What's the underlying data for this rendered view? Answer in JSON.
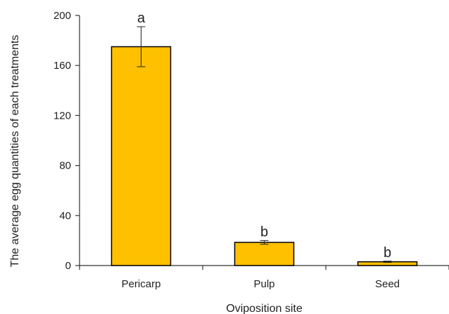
{
  "chart_data": {
    "type": "bar",
    "categories": [
      "Pericarp",
      "Pulp",
      "Seed"
    ],
    "values": [
      175,
      18.5,
      3
    ],
    "error": [
      16,
      1.5,
      0.5
    ],
    "significance": [
      "a",
      "b",
      "b"
    ],
    "xlabel": "Oviposition site",
    "ylabel": "The average egg quantities of each treatments",
    "ylim": [
      0,
      200
    ],
    "yticks": [
      0,
      40,
      80,
      120,
      160,
      200
    ],
    "grid": false,
    "legend": "none",
    "bar_color": "#FFC000"
  }
}
